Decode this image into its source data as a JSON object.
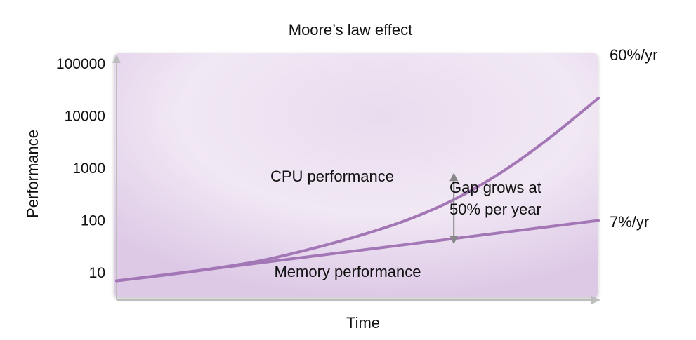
{
  "chart_data": {
    "type": "line",
    "title": "Moore’s law effect",
    "xlabel": "Time",
    "ylabel": "Performance",
    "yscale": "log",
    "ylim": [
      10,
      100000
    ],
    "yticks": [
      "10",
      "100",
      "1000",
      "10000",
      "100000"
    ],
    "xticks": [],
    "grid": false,
    "series": [
      {
        "name": "CPU performance",
        "rate_label": "60%/yr",
        "x": [
          0,
          2,
          4,
          6,
          8,
          10,
          12,
          14,
          16,
          18,
          20
        ],
        "y": [
          7,
          9,
          12,
          17,
          28,
          50,
          100,
          250,
          850,
          3900,
          22000
        ]
      },
      {
        "name": "Memory performance",
        "rate_label": "7%/yr",
        "x": [
          0,
          20
        ],
        "y": [
          7,
          100
        ]
      }
    ],
    "annotations": [
      {
        "text_lines": [
          "Gap grows at",
          "50% per year"
        ],
        "x": 14,
        "y_from": 34,
        "y_to": 850
      }
    ],
    "colors": {
      "series": "#a377b6",
      "arrow": "#888888",
      "axis": "#bdbdbd",
      "background": "#efe4f1"
    }
  }
}
